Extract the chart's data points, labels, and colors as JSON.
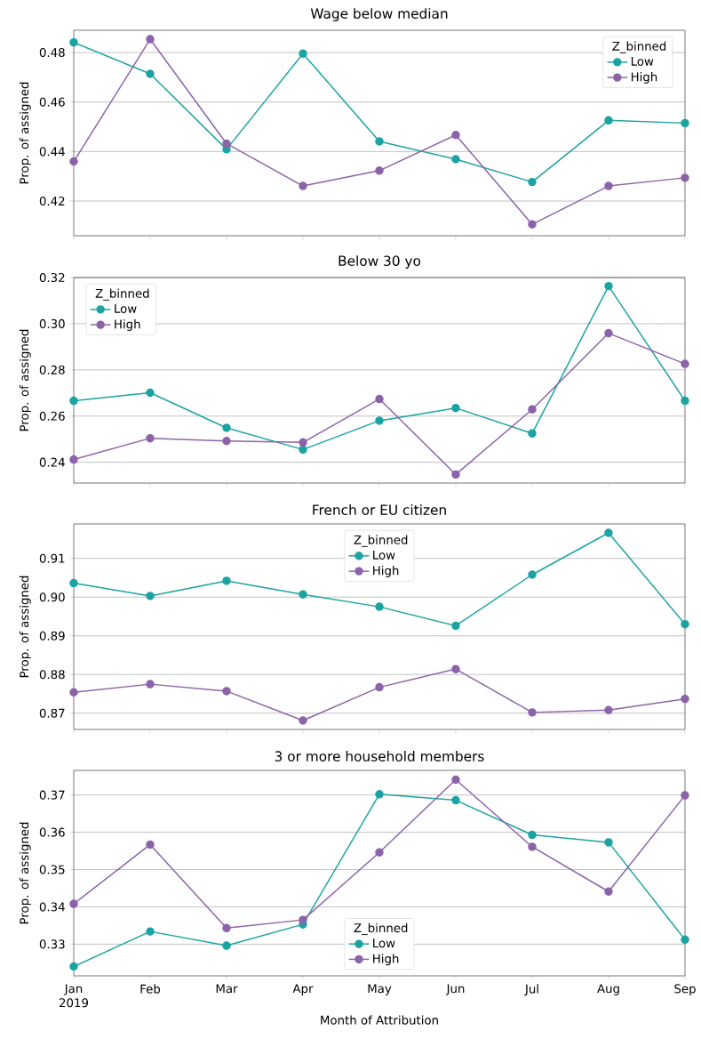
{
  "chart_data": [
    {
      "type": "line",
      "title": "Wage below median",
      "ylabel": "Prop. of assigned",
      "legend_title": "Z_binned",
      "legend": "top right",
      "grid": "y",
      "marker": "circle",
      "tick_labels": "y",
      "categories": [
        null,
        null,
        null,
        null,
        null,
        null,
        null,
        null,
        null
      ],
      "ylim": [
        0.406,
        0.489
      ],
      "yticks": [
        0.42,
        0.44,
        0.46,
        0.48
      ],
      "series": [
        {
          "name": "Low",
          "color": "#1ba3a3",
          "values": [
            0.4841,
            0.4714,
            0.4409,
            0.4796,
            0.4441,
            0.4369,
            0.4277,
            0.4526,
            0.4515
          ]
        },
        {
          "name": "High",
          "color": "#8c62a8",
          "values": [
            0.436,
            0.4854,
            0.4432,
            0.4261,
            0.4323,
            0.4467,
            0.4106,
            0.4261,
            0.4294
          ]
        }
      ]
    },
    {
      "type": "line",
      "title": "Below 30 yo",
      "ylabel": "Prop. of assigned",
      "legend_title": "Z_binned",
      "legend": "top left",
      "grid": "y",
      "marker": "circle",
      "tick_labels": "y",
      "categories": [
        null,
        null,
        null,
        null,
        null,
        null,
        null,
        null,
        null
      ],
      "ylim": [
        0.231,
        0.32
      ],
      "yticks": [
        0.24,
        0.26,
        0.28,
        {
          "value": 0.3,
          "label": "0.30"
        },
        0.32
      ],
      "series": [
        {
          "name": "Low",
          "color": "#1ba3a3",
          "values": [
            0.2666,
            0.2701,
            0.2549,
            0.2455,
            0.258,
            0.2635,
            0.2525,
            0.3163,
            0.2666
          ]
        },
        {
          "name": "High",
          "color": "#8c62a8",
          "values": [
            0.2412,
            0.2504,
            0.2492,
            0.2486,
            0.2674,
            0.2347,
            0.2629,
            0.2959,
            0.2826
          ]
        }
      ]
    },
    {
      "type": "line",
      "title": "French or EU citizen",
      "ylabel": "Prop. of assigned",
      "legend_title": "Z_binned",
      "legend": "top",
      "grid": "y",
      "marker": "circle",
      "tick_labels": "y",
      "categories": [
        null,
        null,
        null,
        null,
        null,
        null,
        null,
        null,
        null
      ],
      "ylim": [
        0.8658,
        0.9189
      ],
      "yticks": [
        0.87,
        0.88,
        0.89,
        {
          "value": 0.9,
          "label": "0.90"
        },
        0.91
      ],
      "series": [
        {
          "name": "Low",
          "color": "#1ba3a3",
          "values": [
            0.9036,
            0.9003,
            0.9042,
            0.9007,
            0.8975,
            0.8926,
            0.9058,
            0.9166,
            0.893
          ]
        },
        {
          "name": "High",
          "color": "#8c62a8",
          "values": [
            0.8754,
            0.8775,
            0.8757,
            0.8681,
            0.8767,
            0.8814,
            0.8702,
            0.8708,
            0.8737
          ]
        }
      ]
    },
    {
      "type": "line",
      "title": "3 or more household members",
      "xlabel": "Month of Attribution",
      "ylabel": "Prop. of assigned",
      "legend_title": "Z_binned",
      "legend": "bottom",
      "grid": "y",
      "marker": "circle",
      "categories": [
        "Jan 2019",
        "Feb",
        "Mar",
        "Apr",
        "May",
        "Jun",
        "Jul",
        "Aug",
        "Sep"
      ],
      "ylim": [
        0.3215,
        0.3766
      ],
      "yticks": [
        0.33,
        0.34,
        0.35,
        0.36,
        0.37
      ],
      "series": [
        {
          "name": "Low",
          "color": "#1ba3a3",
          "values": [
            0.324,
            0.3334,
            0.3296,
            0.3353,
            0.3702,
            0.3686,
            0.3593,
            0.3573,
            0.3312
          ]
        },
        {
          "name": "High",
          "color": "#8c62a8",
          "values": [
            0.3408,
            0.3567,
            0.3343,
            0.3365,
            0.3546,
            0.3741,
            0.3561,
            0.3441,
            0.3699
          ]
        }
      ]
    }
  ]
}
